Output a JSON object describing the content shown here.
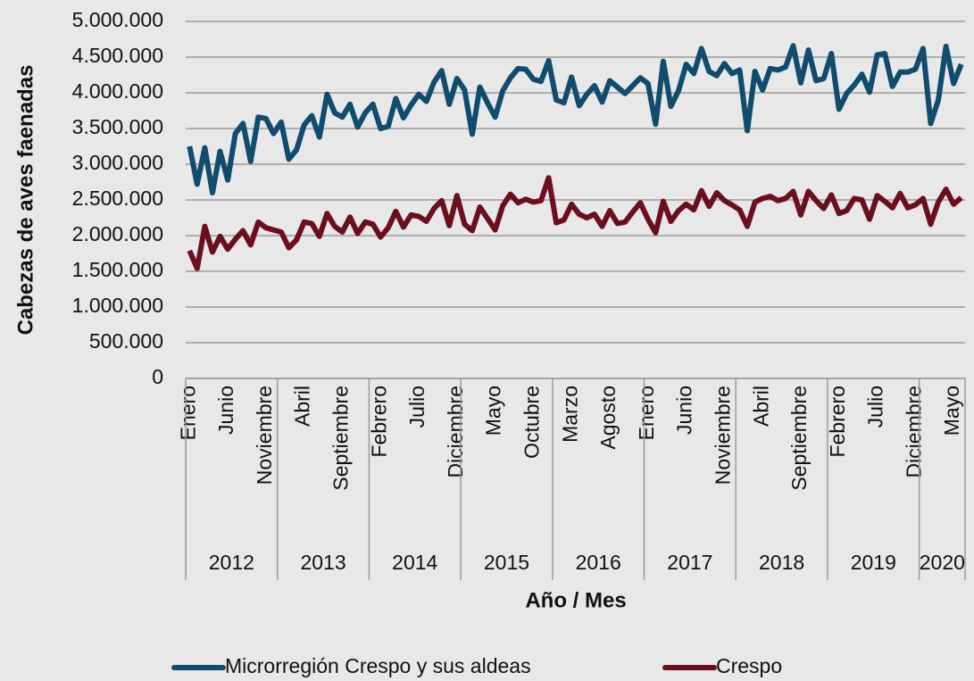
{
  "chart_data": {
    "type": "line",
    "y_axis_label": "Cabezas de aves faenadas",
    "x_axis_label": "Año / Mes",
    "categories": [
      "Enero",
      null,
      null,
      null,
      null,
      "Junio",
      null,
      null,
      null,
      null,
      "Noviembre",
      null,
      null,
      null,
      null,
      "Abril",
      null,
      null,
      null,
      null,
      "Septiembre",
      null,
      null,
      null,
      null,
      "Febrero",
      null,
      null,
      null,
      null,
      "Julio",
      null,
      null,
      null,
      null,
      "Diciembre",
      null,
      null,
      null,
      null,
      "Mayo",
      null,
      null,
      null,
      null,
      "Octubre",
      null,
      null,
      null,
      null,
      "Marzo",
      null,
      null,
      null,
      null,
      "Agosto",
      null,
      null,
      null,
      null,
      "Enero",
      null,
      null,
      null,
      null,
      "Junio",
      null,
      null,
      null,
      null,
      "Noviembre",
      null,
      null,
      null,
      null,
      "Abril",
      null,
      null,
      null,
      null,
      "Septiembre",
      null,
      null,
      null,
      null,
      "Febrero",
      null,
      null,
      null,
      null,
      "Julio",
      null,
      null,
      null,
      null,
      "Diciembre",
      null,
      null,
      null,
      null,
      "Mayo",
      null
    ],
    "years": [
      "2012",
      "2013",
      "2014",
      "2015",
      "2016",
      "2017",
      "2018",
      "2019",
      "2020"
    ],
    "series": [
      {
        "name": "Microrregión Crespo y sus aldeas",
        "color": "#0f4c6e",
        "values": [
          3250000,
          2720000,
          3230000,
          2600000,
          3180000,
          2780000,
          3430000,
          3570000,
          3040000,
          3660000,
          3640000,
          3430000,
          3590000,
          3070000,
          3200000,
          3550000,
          3680000,
          3380000,
          3980000,
          3720000,
          3660000,
          3840000,
          3520000,
          3720000,
          3840000,
          3500000,
          3530000,
          3920000,
          3650000,
          3830000,
          3980000,
          3880000,
          4150000,
          4310000,
          3840000,
          4200000,
          4040000,
          3420000,
          4080000,
          3860000,
          3660000,
          4030000,
          4210000,
          4340000,
          4330000,
          4190000,
          4160000,
          4450000,
          3900000,
          3860000,
          4220000,
          3820000,
          3980000,
          4100000,
          3870000,
          4170000,
          4080000,
          3990000,
          4100000,
          4210000,
          4130000,
          3560000,
          4440000,
          3810000,
          4030000,
          4400000,
          4270000,
          4620000,
          4300000,
          4240000,
          4410000,
          4270000,
          4320000,
          3470000,
          4300000,
          4040000,
          4340000,
          4320000,
          4360000,
          4660000,
          4140000,
          4600000,
          4170000,
          4200000,
          4550000,
          3770000,
          3990000,
          4110000,
          4260000,
          4010000,
          4530000,
          4550000,
          4090000,
          4290000,
          4290000,
          4330000,
          4620000,
          3570000,
          3900000,
          4650000,
          4130000,
          4400000
        ]
      },
      {
        "name": "Crespo",
        "color": "#6b0f1c",
        "values": [
          1790000,
          1540000,
          2130000,
          1770000,
          1990000,
          1810000,
          1950000,
          2070000,
          1870000,
          2190000,
          2110000,
          2080000,
          2050000,
          1830000,
          1940000,
          2190000,
          2170000,
          1990000,
          2310000,
          2130000,
          2050000,
          2260000,
          2030000,
          2190000,
          2160000,
          1980000,
          2110000,
          2340000,
          2120000,
          2290000,
          2270000,
          2200000,
          2380000,
          2490000,
          2140000,
          2560000,
          2160000,
          2070000,
          2400000,
          2240000,
          2080000,
          2420000,
          2580000,
          2460000,
          2510000,
          2470000,
          2490000,
          2810000,
          2180000,
          2220000,
          2440000,
          2300000,
          2250000,
          2300000,
          2130000,
          2350000,
          2170000,
          2190000,
          2330000,
          2460000,
          2230000,
          2040000,
          2480000,
          2200000,
          2350000,
          2440000,
          2360000,
          2630000,
          2410000,
          2600000,
          2490000,
          2430000,
          2360000,
          2130000,
          2470000,
          2520000,
          2550000,
          2490000,
          2520000,
          2620000,
          2290000,
          2620000,
          2490000,
          2380000,
          2570000,
          2310000,
          2350000,
          2520000,
          2500000,
          2230000,
          2560000,
          2480000,
          2390000,
          2590000,
          2390000,
          2430000,
          2520000,
          2160000,
          2470000,
          2650000,
          2440000,
          2530000
        ]
      }
    ],
    "ylim": [
      0,
      5000000
    ],
    "yticks": [
      0,
      {
        "value": 500000,
        "label": "500.000"
      },
      {
        "value": 1000000,
        "label": "1.000.000"
      },
      {
        "value": 1500000,
        "label": "1.500.000"
      },
      {
        "value": 2000000,
        "label": "2.000.000"
      },
      {
        "value": 2500000,
        "label": "2.500.000"
      },
      {
        "value": 3000000,
        "label": "3.000.000"
      },
      {
        "value": 3500000,
        "label": "3.500.000"
      },
      {
        "value": 4000000,
        "label": "4.000.000"
      },
      {
        "value": 4500000,
        "label": "4.500.000"
      },
      {
        "value": 5000000,
        "label": "5.000.000"
      }
    ],
    "grid": true,
    "legend": "bottom"
  }
}
